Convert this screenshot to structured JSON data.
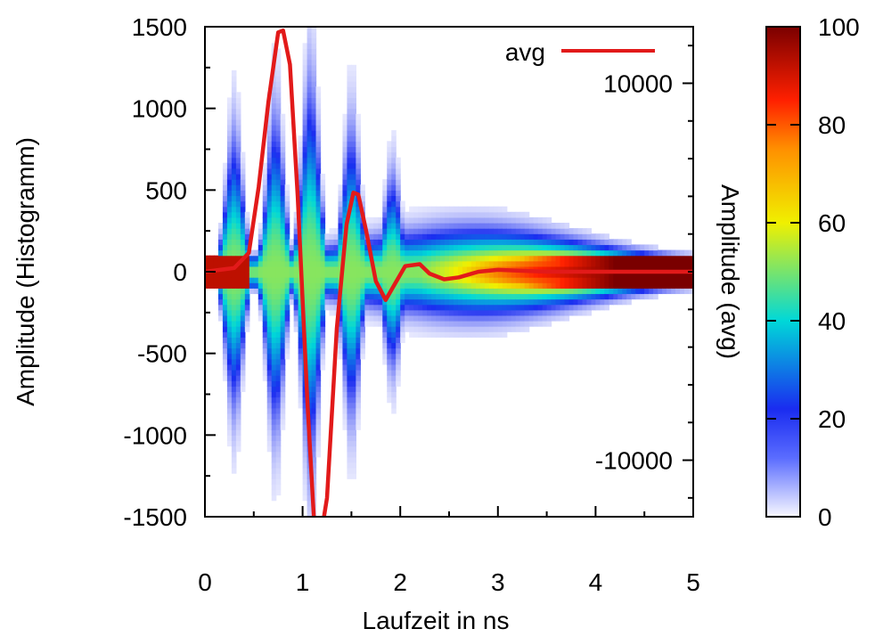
{
  "chart_data": {
    "type": "heatmap",
    "title": "",
    "xlabel": "Laufzeit in ns",
    "ylabel": "Amplitude (Histogramm)",
    "y2label": "Amplitude (avg)",
    "xlim": [
      0,
      5
    ],
    "ylim": [
      -1500,
      1500
    ],
    "y2lim": [
      -13000,
      13000
    ],
    "x_ticks": [
      "0",
      "1",
      "2",
      "3",
      "4",
      "5"
    ],
    "y_ticks": [
      "-1500",
      "-1000",
      "-500",
      "0",
      "500",
      "1000",
      "1500"
    ],
    "y2_ticks": [
      "-10000",
      "10000"
    ],
    "colorbar": {
      "range": [
        0,
        100
      ],
      "ticks": [
        "0",
        "20",
        "40",
        "60",
        "80",
        "100"
      ],
      "colors": [
        "#f8f8ff",
        "#1a2cf0",
        "#00d8d8",
        "#f0f000",
        "#ff2000",
        "#7a0000"
      ]
    },
    "legend": {
      "position": "top-right"
    },
    "series": [
      {
        "name": "avg",
        "color": "#e21a1a",
        "x": [
          0,
          0.3,
          0.45,
          0.55,
          0.65,
          0.75,
          0.8,
          0.87,
          0.95,
          1.05,
          1.12,
          1.17,
          1.25,
          1.35,
          1.45,
          1.52,
          1.57,
          1.65,
          1.75,
          1.85,
          1.95,
          2.05,
          2.2,
          2.3,
          2.45,
          2.6,
          2.8,
          3.0,
          3.5,
          4.0,
          4.5,
          5.0
        ],
        "values": [
          0,
          200,
          1000,
          4500,
          9000,
          12700,
          12800,
          11000,
          4000,
          -7000,
          -13500,
          -14600,
          -12000,
          -3000,
          2500,
          4200,
          4100,
          2200,
          -500,
          -1500,
          -600,
          300,
          400,
          -100,
          -400,
          -300,
          0,
          100,
          0,
          0,
          0,
          0
        ]
      }
    ],
    "density_bursts": [
      {
        "center": 0.3,
        "amplitude": 1000
      },
      {
        "center": 0.72,
        "amplitude": 1150
      },
      {
        "center": 1.08,
        "amplitude": 1400
      },
      {
        "center": 1.5,
        "amplitude": 1050
      },
      {
        "center": 1.92,
        "amplitude": 700
      }
    ]
  }
}
